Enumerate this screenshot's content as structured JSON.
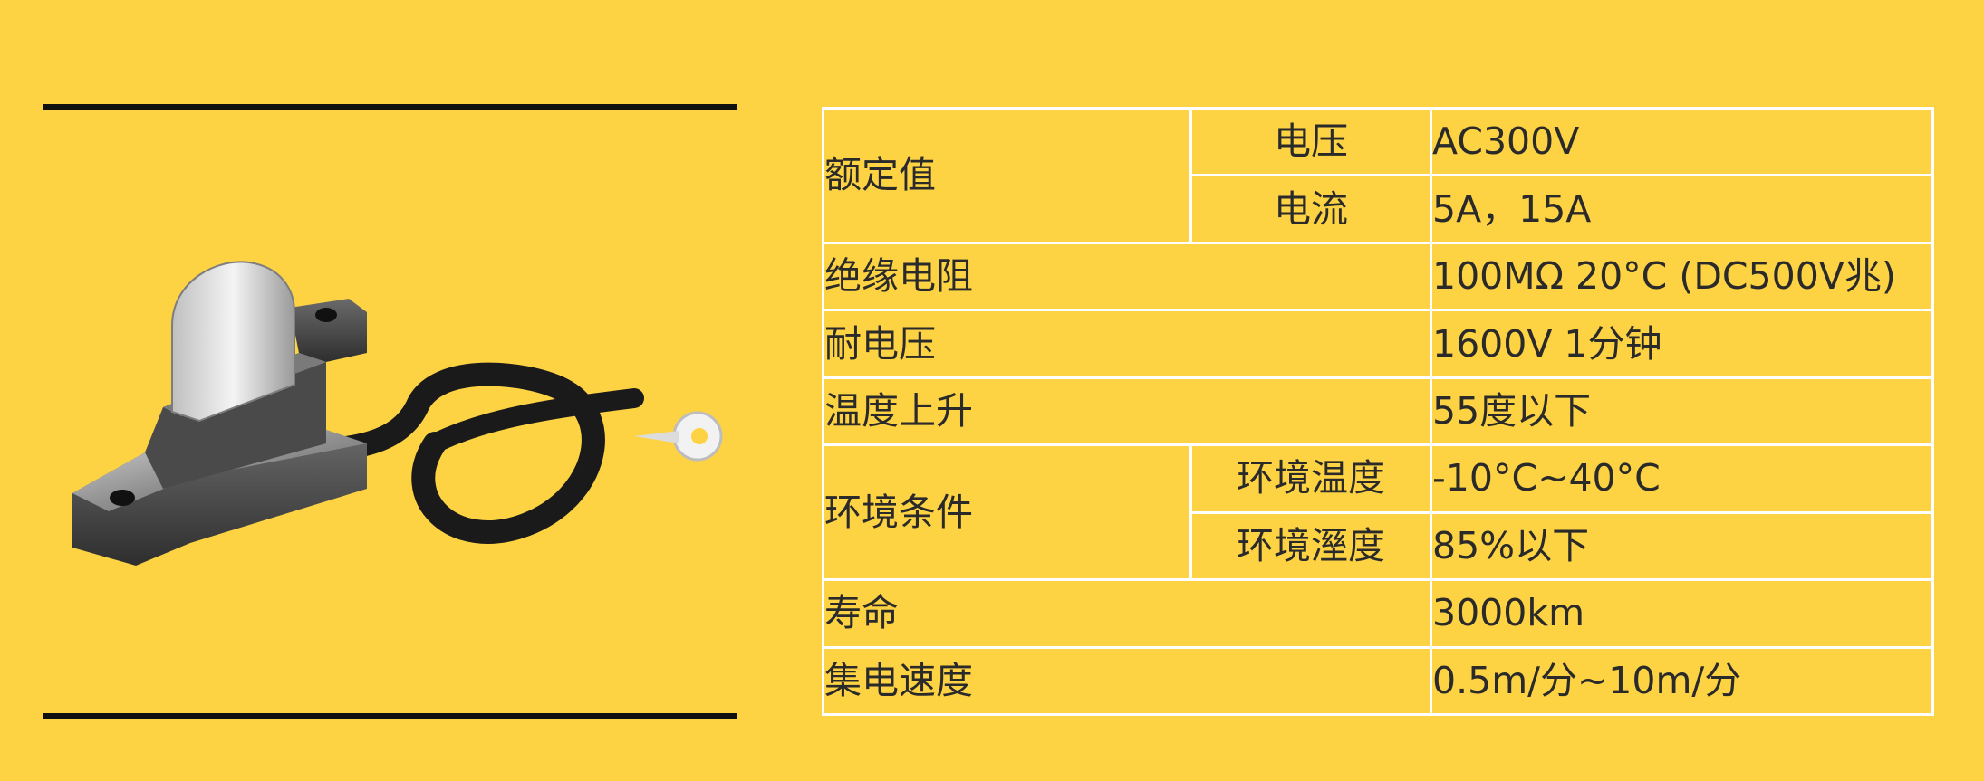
{
  "colors": {
    "background": "#FDD344",
    "grid": "#FFFFFF",
    "rule": "#111111",
    "text": "#2A2A2A"
  },
  "product_image": {
    "icon": "carbon-brush-collector-icon"
  },
  "spec_table": {
    "rated_value": {
      "label": "额定值",
      "voltage": {
        "label": "电压",
        "value": "AC300V"
      },
      "current": {
        "label": "电流",
        "value": "5A，15A"
      }
    },
    "insulation_resistance": {
      "label": "绝缘电阻",
      "value": "100MΩ 20°C (DC500V兆)"
    },
    "withstand_voltage": {
      "label": "耐电压",
      "value": "1600V 1分钟"
    },
    "temperature_rise": {
      "label": "温度上升",
      "value": "55度以下"
    },
    "environment": {
      "label": "环境条件",
      "temperature": {
        "label": "环境温度",
        "value": "-10°C~40°C"
      },
      "humidity": {
        "label": "环境溼度",
        "value": "85%以下"
      }
    },
    "lifespan": {
      "label": "寿命",
      "value": "3000km"
    },
    "collection_speed": {
      "label": "集电速度",
      "value": "0.5m/分~10m/分"
    }
  }
}
